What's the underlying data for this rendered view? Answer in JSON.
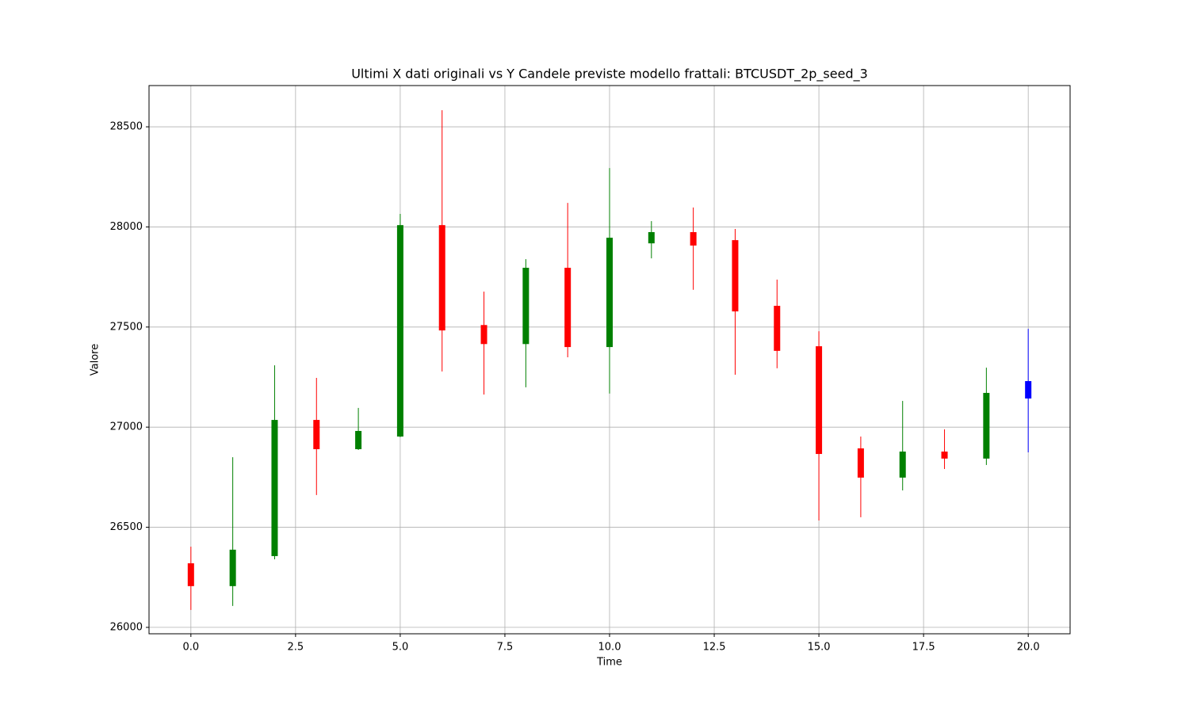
{
  "chart_data": {
    "type": "candlestick",
    "title": "Ultimi X dati originali vs Y Candele previste modello frattali: BTCUSDT_2p_seed_3",
    "xlabel": "Time",
    "ylabel": "Valore",
    "x": [
      0,
      1,
      2,
      3,
      4,
      5,
      6,
      7,
      8,
      9,
      10,
      11,
      12,
      13,
      14,
      15,
      16,
      17,
      18,
      19,
      20
    ],
    "open": [
      26320,
      26206,
      26356,
      27036,
      26890,
      26953,
      28009,
      27510,
      27415,
      27796,
      27400,
      27918,
      27974,
      27934,
      27606,
      27404,
      26894,
      26748,
      26878,
      26843,
      27143
    ],
    "high": [
      26403,
      26850,
      27309,
      27246,
      27096,
      28065,
      28583,
      27677,
      27839,
      28120,
      28294,
      28029,
      28097,
      27990,
      27737,
      27479,
      26953,
      27131,
      26989,
      27297,
      27491
    ],
    "low": [
      26087,
      26107,
      26340,
      26661,
      26886,
      26950,
      27278,
      27163,
      27199,
      27349,
      27168,
      27843,
      27686,
      27262,
      27294,
      26534,
      26550,
      26684,
      26791,
      26811,
      26874
    ],
    "close": [
      26206,
      26388,
      27036,
      26890,
      26981,
      28009,
      27483,
      27415,
      27796,
      27400,
      27946,
      27974,
      27907,
      27578,
      27381,
      26866,
      26748,
      26878,
      26843,
      27171,
      27230
    ],
    "colors": [
      "red",
      "green",
      "green",
      "red",
      "green",
      "green",
      "red",
      "red",
      "green",
      "red",
      "green",
      "green",
      "red",
      "red",
      "red",
      "red",
      "red",
      "green",
      "red",
      "green",
      "blue"
    ],
    "xlim": [
      -1,
      21
    ],
    "ylim": [
      25968,
      28706
    ],
    "xticks": [
      {
        "value": 0,
        "label": "0.0"
      },
      {
        "value": 2.5,
        "label": "2.5"
      },
      {
        "value": 5,
        "label": "5.0"
      },
      {
        "value": 7.5,
        "label": "7.5"
      },
      {
        "value": 10,
        "label": "10.0"
      },
      {
        "value": 12.5,
        "label": "12.5"
      },
      {
        "value": 15,
        "label": "15.0"
      },
      {
        "value": 17.5,
        "label": "17.5"
      },
      {
        "value": 20,
        "label": "20.0"
      }
    ],
    "yticks": [
      26000,
      26500,
      27000,
      27500,
      28000,
      28500
    ],
    "grid": true
  }
}
